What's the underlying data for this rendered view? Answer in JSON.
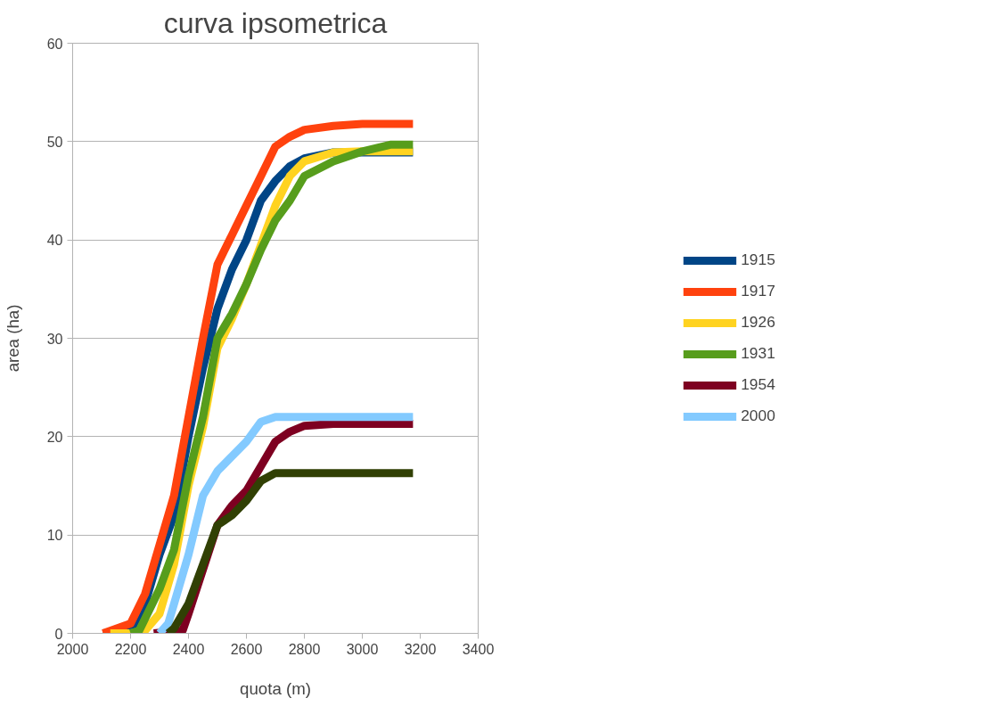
{
  "chart_data": {
    "type": "line",
    "title": "curva ipsometrica",
    "xlabel": "quota (m)",
    "ylabel": "area (ha)",
    "xlim": [
      2000,
      3400
    ],
    "xticks": [
      2000,
      2200,
      2400,
      2600,
      2800,
      3000,
      3200,
      3400
    ],
    "ylim": [
      0,
      60
    ],
    "yticks": [
      0,
      10,
      20,
      30,
      40,
      50,
      60
    ],
    "grid": "y",
    "legend": "right",
    "marker": "none",
    "line_style": "solid",
    "series": [
      {
        "name": "1915",
        "color": "#004586",
        "x": [
          2105,
          2200,
          2250,
          2300,
          2350,
          2400,
          2450,
          2500,
          2550,
          2600,
          2650,
          2700,
          2750,
          2800,
          2900,
          3000,
          3175
        ],
        "values": [
          0,
          0.3,
          3,
          8,
          12,
          20,
          27,
          33,
          37,
          40,
          44,
          46,
          47.5,
          48.3,
          48.9,
          48.9,
          48.9
        ]
      },
      {
        "name": "1917",
        "color": "#ff420e",
        "x": [
          2105,
          2200,
          2250,
          2300,
          2350,
          2400,
          2450,
          2500,
          2550,
          2600,
          2650,
          2700,
          2750,
          2800,
          2900,
          3000,
          3175
        ],
        "values": [
          0,
          1,
          4,
          9,
          14,
          22,
          30,
          37.5,
          40.5,
          43.5,
          46.5,
          49.5,
          50.5,
          51.2,
          51.6,
          51.8,
          51.8
        ]
      },
      {
        "name": "1926",
        "color": "#ffd320",
        "x": [
          2130,
          2200,
          2250,
          2300,
          2350,
          2400,
          2450,
          2500,
          2550,
          2600,
          2650,
          2700,
          2750,
          2800,
          2900,
          3000,
          3175
        ],
        "values": [
          0,
          0,
          0.3,
          2,
          7,
          15,
          21,
          29,
          32,
          35.5,
          39.5,
          43.5,
          46.5,
          48,
          48.9,
          49,
          49
        ]
      },
      {
        "name": "1931",
        "color": "#579d1c",
        "x": [
          2200,
          2230,
          2250,
          2300,
          2350,
          2400,
          2450,
          2500,
          2550,
          2600,
          2650,
          2700,
          2750,
          2800,
          2900,
          3000,
          3100,
          3175
        ],
        "values": [
          0,
          0.3,
          1.5,
          4.5,
          8.5,
          16,
          22,
          30,
          32.5,
          35.5,
          39,
          42,
          44,
          46.5,
          48,
          49,
          49.7,
          49.7
        ]
      },
      {
        "name": "1954",
        "color": "#7e0021",
        "x": [
          2280,
          2380,
          2400,
          2450,
          2500,
          2550,
          2600,
          2650,
          2700,
          2750,
          2800,
          2900,
          3175
        ],
        "values": [
          0,
          0.3,
          2,
          6.5,
          11,
          13,
          14.5,
          17,
          19.5,
          20.5,
          21.1,
          21.3,
          21.3
        ]
      },
      {
        "name": "2000",
        "color": "#83caff",
        "x": [
          2300,
          2330,
          2350,
          2400,
          2450,
          2500,
          2550,
          2600,
          2650,
          2700,
          3175
        ],
        "values": [
          0,
          1,
          3,
          8,
          14,
          16.5,
          18,
          19.5,
          21.5,
          22,
          22
        ]
      },
      {
        "color": "#314004",
        "x": [
          2330,
          2350,
          2400,
          2450,
          2500,
          2550,
          2600,
          2650,
          2700,
          3175
        ],
        "values": [
          0,
          0.5,
          3,
          7,
          11,
          12,
          13.5,
          15.5,
          16.3,
          16.3
        ]
      }
    ]
  }
}
